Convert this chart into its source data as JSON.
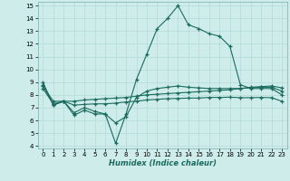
{
  "xlabel": "Humidex (Indice chaleur)",
  "background_color": "#ceecea",
  "grid_color": "#b8ddd9",
  "line_color": "#1a6b5e",
  "xlim": [
    -0.5,
    23.5
  ],
  "ylim": [
    3.8,
    15.3
  ],
  "xticks": [
    0,
    1,
    2,
    3,
    4,
    5,
    6,
    7,
    8,
    9,
    10,
    11,
    12,
    13,
    14,
    15,
    16,
    17,
    18,
    19,
    20,
    21,
    22,
    23
  ],
  "yticks": [
    4,
    5,
    6,
    7,
    8,
    9,
    10,
    11,
    12,
    13,
    14,
    15
  ],
  "line1_x": [
    0,
    1,
    2,
    3,
    4,
    5,
    6,
    7,
    8,
    9,
    10,
    11,
    12,
    13,
    14,
    15,
    16,
    17,
    18,
    19,
    20,
    21,
    22,
    23
  ],
  "line1_y": [
    9.0,
    7.2,
    7.5,
    6.4,
    6.8,
    6.5,
    6.5,
    4.2,
    6.5,
    9.2,
    11.2,
    13.2,
    14.0,
    15.0,
    13.5,
    13.2,
    12.8,
    12.6,
    11.8,
    8.8,
    8.5,
    8.5,
    8.5,
    8.0
  ],
  "line2_x": [
    0,
    1,
    3,
    4,
    5,
    6,
    7,
    8,
    9,
    10,
    11,
    12,
    13,
    14,
    15,
    16,
    17,
    18,
    19,
    20,
    21,
    22,
    23
  ],
  "line2_y": [
    8.7,
    7.5,
    7.5,
    7.6,
    7.65,
    7.7,
    7.75,
    7.8,
    7.9,
    8.0,
    8.05,
    8.1,
    8.15,
    8.2,
    8.25,
    8.3,
    8.35,
    8.4,
    8.5,
    8.6,
    8.65,
    8.7,
    8.55
  ],
  "line3_x": [
    0,
    1,
    2,
    3,
    4,
    5,
    6,
    7,
    8,
    9,
    10,
    11,
    12,
    13,
    14,
    15,
    16,
    17,
    18,
    19,
    20,
    21,
    22,
    23
  ],
  "line3_y": [
    8.5,
    7.3,
    7.5,
    7.2,
    7.25,
    7.3,
    7.3,
    7.35,
    7.45,
    7.5,
    7.6,
    7.65,
    7.7,
    7.72,
    7.75,
    7.75,
    7.8,
    7.8,
    7.82,
    7.78,
    7.78,
    7.8,
    7.78,
    7.5
  ],
  "line4_x": [
    0,
    1,
    2,
    3,
    4,
    5,
    6,
    7,
    8,
    9,
    10,
    11,
    12,
    13,
    14,
    15,
    16,
    17,
    18,
    19,
    20,
    21,
    22,
    23
  ],
  "line4_y": [
    8.8,
    7.2,
    7.5,
    6.6,
    7.0,
    6.7,
    6.5,
    5.8,
    6.3,
    7.8,
    8.3,
    8.5,
    8.6,
    8.7,
    8.6,
    8.55,
    8.5,
    8.5,
    8.5,
    8.5,
    8.55,
    8.6,
    8.6,
    8.3
  ]
}
